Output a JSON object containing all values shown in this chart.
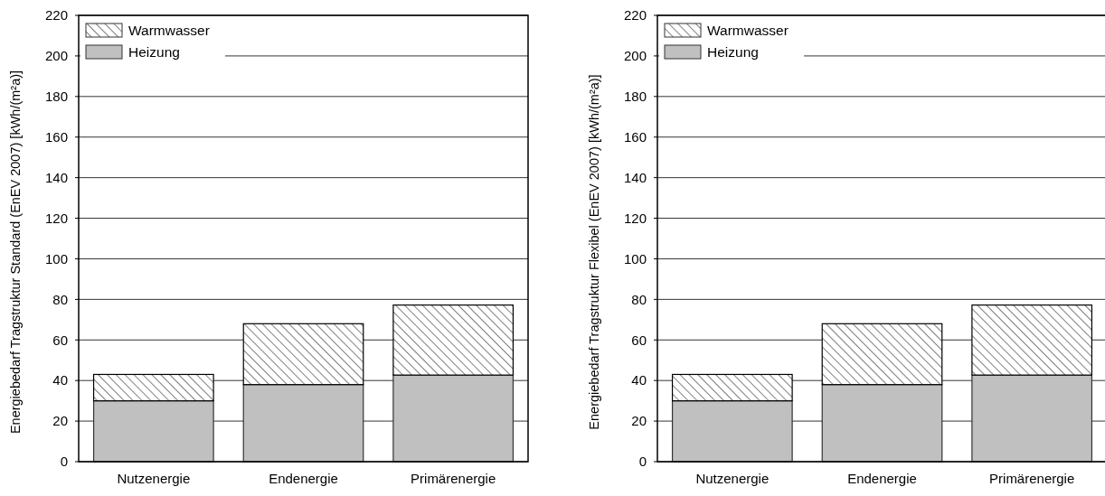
{
  "chart_data": [
    {
      "type": "bar",
      "ylabel": "Energiebedarf Tragstruktur Standard (EnEV 2007) [kWh/(m²a)]",
      "categories": [
        "Nutzenergie",
        "Endenergie",
        "Primärenergie"
      ],
      "stacked": true,
      "series": [
        {
          "name": "Heizung",
          "color": "#c0c0c0",
          "values": [
            30,
            38,
            42.7
          ]
        },
        {
          "name": "Warmwasser",
          "color": "#000000",
          "values": [
            13,
            30,
            34.5
          ]
        }
      ],
      "ylim": [
        0,
        220
      ],
      "yticks": [
        0,
        20,
        40,
        60,
        80,
        100,
        120,
        140,
        160,
        180,
        200,
        220
      ],
      "grid": "y",
      "legend": "top left"
    },
    {
      "type": "bar",
      "ylabel": "Energiebedarf Tragstruktur Flexibel (EnEV 2007) [kWh/(m²a)]",
      "categories": [
        "Nutzenergie",
        "Endenergie",
        "Primärenergie"
      ],
      "stacked": true,
      "series": [
        {
          "name": "Heizung",
          "color": "#c0c0c0",
          "values": [
            30,
            38,
            42.7
          ]
        },
        {
          "name": "Warmwasser",
          "color": "#000000",
          "values": [
            13,
            30,
            34.5
          ]
        }
      ],
      "ylim": [
        0,
        220
      ],
      "yticks": [
        0,
        20,
        40,
        60,
        80,
        100,
        120,
        140,
        160,
        180,
        200,
        220
      ],
      "grid": "y",
      "legend": "top left"
    }
  ]
}
